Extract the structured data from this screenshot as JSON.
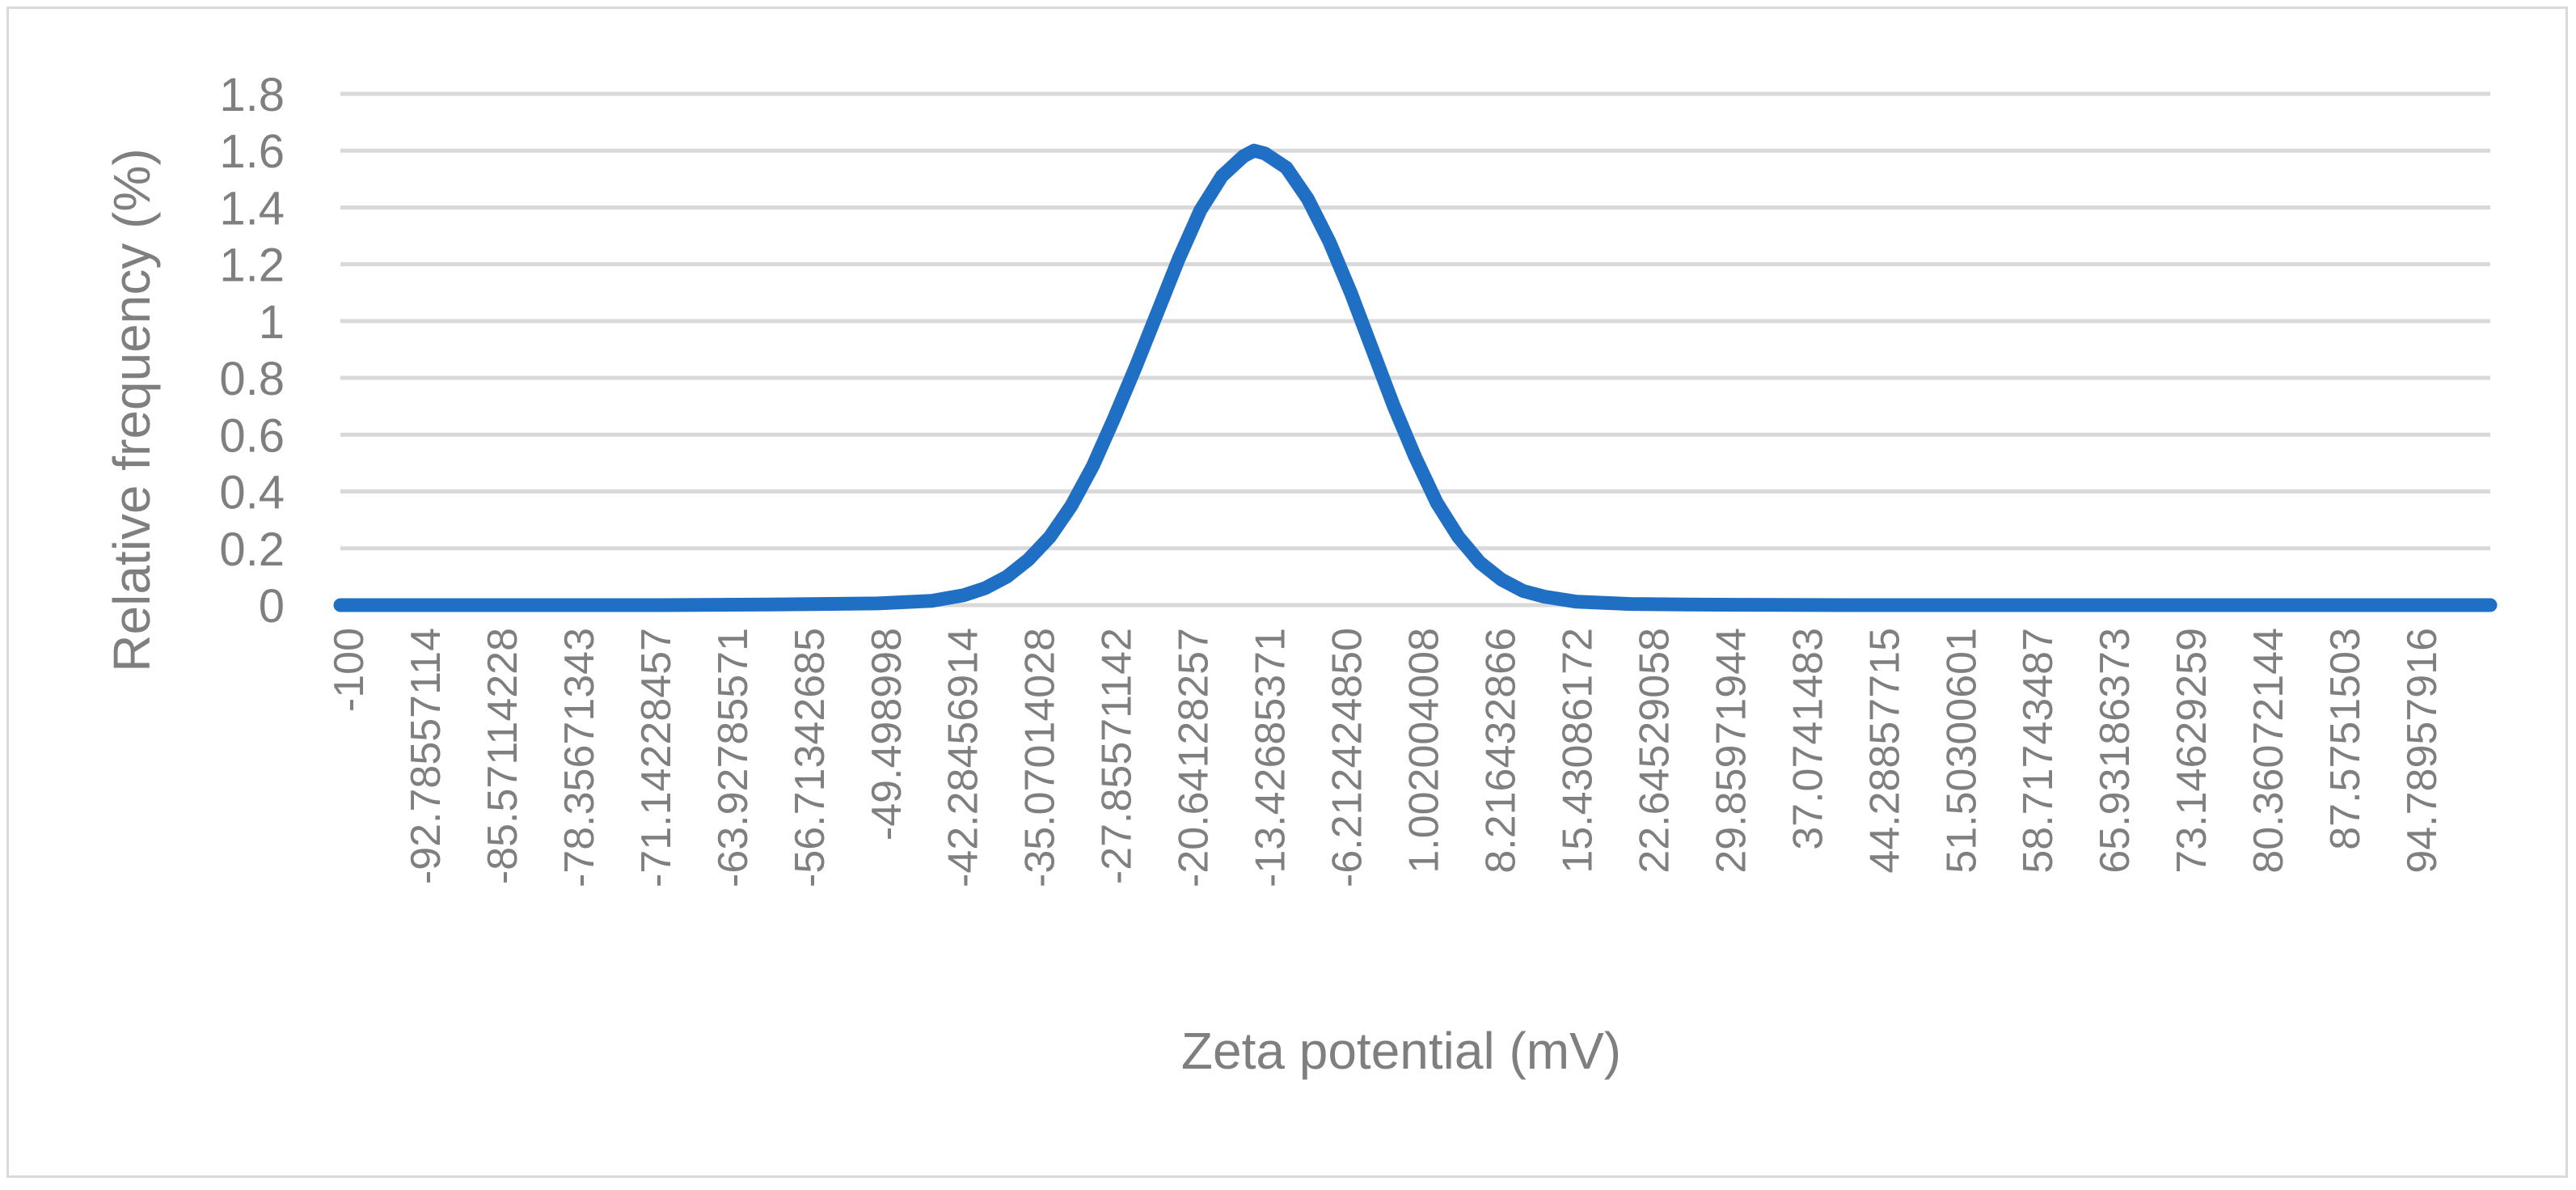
{
  "chart_data": {
    "type": "line",
    "title": "",
    "xlabel": "Zeta potential (mV)",
    "ylabel": "Relative frequency (%)",
    "ylim": [
      0,
      1.8
    ],
    "yticks": [
      0,
      0.2,
      0.4,
      0.6,
      0.8,
      1,
      1.2,
      1.4,
      1.6,
      1.8
    ],
    "ytick_labels": [
      "0",
      "0.2",
      "0.4",
      "0.6",
      "0.8",
      "1",
      "1.2",
      "1.4",
      "1.6",
      "1.8"
    ],
    "xlim": [
      -100,
      100
    ],
    "xtick_labels": [
      "-100",
      "-92.78557114",
      "-85.57114228",
      "-78.35671343",
      "-71.14228457",
      "-63.92785571",
      "-56.71342685",
      "-49.498998",
      "-42.28456914",
      "-35.07014028",
      "-27.85571142",
      "-20.64128257",
      "-13.42685371",
      "-6.212424850",
      "1.002004008",
      "8.216432866",
      "15.43086172",
      "22.64529058",
      "29.85971944",
      "37.0741483",
      "44.28857715",
      "51.50300601",
      "58.71743487",
      "65.93186373",
      "73.14629259",
      "80.36072144",
      "87.5751503",
      "94.78957916"
    ],
    "grid": true,
    "legend": "none",
    "series": [
      {
        "color": "#1f6fc5",
        "x": [
          -100,
          -90,
          -80,
          -70,
          -60,
          -50,
          -45,
          -42,
          -40,
          -38,
          -36,
          -34,
          -32,
          -30,
          -28,
          -26,
          -24,
          -22,
          -20,
          -18,
          -16,
          -15,
          -14,
          -12,
          -10,
          -8,
          -6,
          -4,
          -2,
          0,
          2,
          4,
          6,
          8,
          10,
          12,
          15,
          20,
          25,
          30,
          40,
          50,
          60,
          70,
          80,
          90,
          100
        ],
        "y": [
          0,
          0,
          0,
          0,
          0.002,
          0.006,
          0.015,
          0.035,
          0.06,
          0.1,
          0.16,
          0.24,
          0.35,
          0.49,
          0.66,
          0.84,
          1.03,
          1.22,
          1.39,
          1.51,
          1.58,
          1.6,
          1.59,
          1.54,
          1.43,
          1.28,
          1.1,
          0.9,
          0.7,
          0.52,
          0.36,
          0.24,
          0.15,
          0.09,
          0.05,
          0.03,
          0.012,
          0.004,
          0.002,
          0.001,
          0,
          0,
          0,
          0,
          0,
          0,
          0
        ]
      }
    ]
  }
}
